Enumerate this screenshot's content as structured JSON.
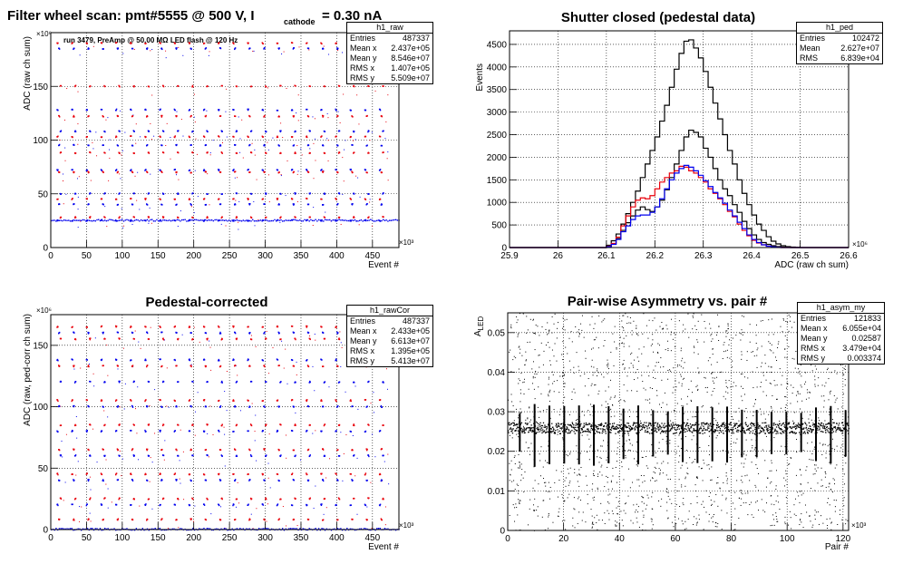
{
  "panels": {
    "raw": {
      "title_main": "Filter wheel scan: pmt#5555 @   500 V, I",
      "title_sub": "cathode",
      "title_tail": " = 0.30 nA",
      "annotation": "run 3479, PreAmp @ 50.00 MΩ LED flash @  120 Hz",
      "xlabel": "Event #",
      "ylabel": "ADC (raw ch sum)",
      "x_exponent": "×10³",
      "y_exponent": "×10⁶",
      "stats": {
        "name": "h1_raw",
        "rows": [
          {
            "label": "Entries",
            "value": "487337"
          },
          {
            "label": "Mean x",
            "value": "2.437e+05"
          },
          {
            "label": "Mean y",
            "value": "8.546e+07"
          },
          {
            "label": "RMS x",
            "value": "1.407e+05"
          },
          {
            "label": "RMS y",
            "value": "5.509e+07"
          }
        ]
      }
    },
    "ped": {
      "title": "Shutter closed (pedestal data)",
      "xlabel": "ADC (raw ch sum)",
      "ylabel": "Events",
      "x_exponent": "×10⁶",
      "stats": {
        "name": "h1_ped",
        "rows": [
          {
            "label": "Entries",
            "value": "102472"
          },
          {
            "label": "Mean",
            "value": "2.627e+07"
          },
          {
            "label": "RMS",
            "value": "6.839e+04"
          }
        ]
      }
    },
    "cor": {
      "title": "Pedestal-corrected",
      "xlabel": "Event #",
      "ylabel": "ADC (raw, ped-corr ch sum)",
      "x_exponent": "×10³",
      "y_exponent": "×10⁶",
      "stats": {
        "name": "h1_rawCor",
        "rows": [
          {
            "label": "Entries",
            "value": "487337"
          },
          {
            "label": "Mean x",
            "value": "2.433e+05"
          },
          {
            "label": "Mean y",
            "value": "6.613e+07"
          },
          {
            "label": "RMS x",
            "value": "1.395e+05"
          },
          {
            "label": "RMS y",
            "value": "5.413e+07"
          }
        ]
      }
    },
    "asym": {
      "title": "Pair-wise Asymmetry vs. pair #",
      "xlabel": "Pair #",
      "ylabel_main": "A",
      "ylabel_sub": "LED",
      "x_exponent": "×10³",
      "stats": {
        "name": "h1_asym_my",
        "rows": [
          {
            "label": "Entries",
            "value": "121833"
          },
          {
            "label": "Mean x",
            "value": "6.055e+04"
          },
          {
            "label": "Mean y",
            "value": "0.02587"
          },
          {
            "label": "RMS x",
            "value": "3.479e+04"
          },
          {
            "label": "RMS y",
            "value": "0.003374"
          }
        ]
      }
    }
  },
  "chart_data": [
    {
      "id": "raw",
      "type": "scatter",
      "xlim": [
        0,
        487
      ],
      "ylim": [
        0,
        200
      ],
      "xticks": [
        0,
        50,
        100,
        150,
        200,
        250,
        300,
        350,
        400,
        450
      ],
      "yticks": [
        0,
        50,
        100,
        150
      ],
      "grid": true,
      "legend": "top-right",
      "colors": {
        "red": "#e8000b",
        "blue": "#0000ee"
      },
      "levels": [
        190,
        185,
        150,
        128,
        122,
        108,
        103,
        95,
        88,
        72,
        70,
        50,
        45,
        40,
        28,
        25
      ],
      "group_spacing": 20.5,
      "baseline": 25
    },
    {
      "id": "ped",
      "type": "histogram",
      "xlim": [
        25.9,
        26.6
      ],
      "ylim": [
        0,
        4800
      ],
      "xticks": [
        25.9,
        26.0,
        26.1,
        26.2,
        26.3,
        26.4,
        26.5,
        26.6
      ],
      "yticks": [
        0,
        500,
        1000,
        1500,
        2000,
        2500,
        3000,
        3500,
        4000,
        4500
      ],
      "grid": true,
      "legend": "top-right",
      "bin_width": 0.01,
      "series": [
        {
          "color": "#000000",
          "x_start": 26.1,
          "values": [
            50,
            150,
            300,
            520,
            750,
            1000,
            1250,
            1550,
            1850,
            2150,
            2450,
            2800,
            3150,
            3550,
            3950,
            4300,
            4570,
            4600,
            4420,
            4200,
            3900,
            3550,
            3200,
            2850,
            2500,
            2150,
            1850,
            1500,
            1200,
            950,
            720,
            520,
            380,
            240,
            140,
            80,
            40,
            20,
            10,
            5
          ]
        },
        {
          "color": "#000000",
          "x_start": 26.1,
          "values": [
            30,
            80,
            200,
            380,
            550,
            700,
            830,
            900,
            840,
            800,
            900,
            1050,
            1280,
            1550,
            1850,
            2150,
            2450,
            2600,
            2550,
            2450,
            2200,
            2000,
            1750,
            1500,
            1300,
            1150,
            950,
            780,
            580,
            420,
            280,
            180,
            110,
            70,
            40,
            20,
            10,
            5,
            0,
            0
          ]
        },
        {
          "color": "#e8000b",
          "x_start": 26.1,
          "values": [
            30,
            90,
            230,
            480,
            700,
            900,
            1050,
            1100,
            1080,
            1150,
            1300,
            1450,
            1550,
            1650,
            1700,
            1800,
            1780,
            1700,
            1650,
            1550,
            1450,
            1300,
            1200,
            1080,
            950,
            800,
            680,
            520,
            380,
            260,
            160,
            100,
            60,
            30,
            15,
            5,
            0,
            0,
            0,
            0
          ]
        },
        {
          "color": "#0000ee",
          "x_start": 26.1,
          "values": [
            20,
            70,
            180,
            350,
            480,
            620,
            700,
            720,
            720,
            780,
            900,
            1080,
            1300,
            1500,
            1650,
            1750,
            1820,
            1780,
            1700,
            1600,
            1480,
            1350,
            1220,
            1100,
            980,
            830,
            700,
            560,
            420,
            280,
            180,
            110,
            60,
            30,
            15,
            5,
            0,
            0,
            0,
            0
          ]
        }
      ]
    },
    {
      "id": "cor",
      "type": "scatter",
      "xlim": [
        0,
        487
      ],
      "ylim": [
        0,
        175
      ],
      "xticks": [
        0,
        50,
        100,
        150,
        200,
        250,
        300,
        350,
        400,
        450
      ],
      "yticks": [
        0,
        50,
        100,
        150
      ],
      "grid": true,
      "legend": "top-right",
      "colors": {
        "red": "#e8000b",
        "blue": "#0000ee"
      },
      "levels": [
        165,
        160,
        155,
        138,
        133,
        120,
        105,
        100,
        85,
        80,
        65,
        60,
        45,
        40,
        25,
        20,
        8
      ],
      "group_spacing": 20.5,
      "baseline": 0
    },
    {
      "id": "asym",
      "type": "scatter",
      "xlim": [
        0,
        122
      ],
      "ylim": [
        0,
        0.055
      ],
      "xticks": [
        0,
        20,
        40,
        60,
        80,
        100,
        120
      ],
      "yticks": [
        0,
        0.01,
        0.02,
        0.03,
        0.04,
        0.05
      ],
      "grid": true,
      "legend": "top-right",
      "band_center": 0.026,
      "spike_spacing": 5.3
    }
  ]
}
